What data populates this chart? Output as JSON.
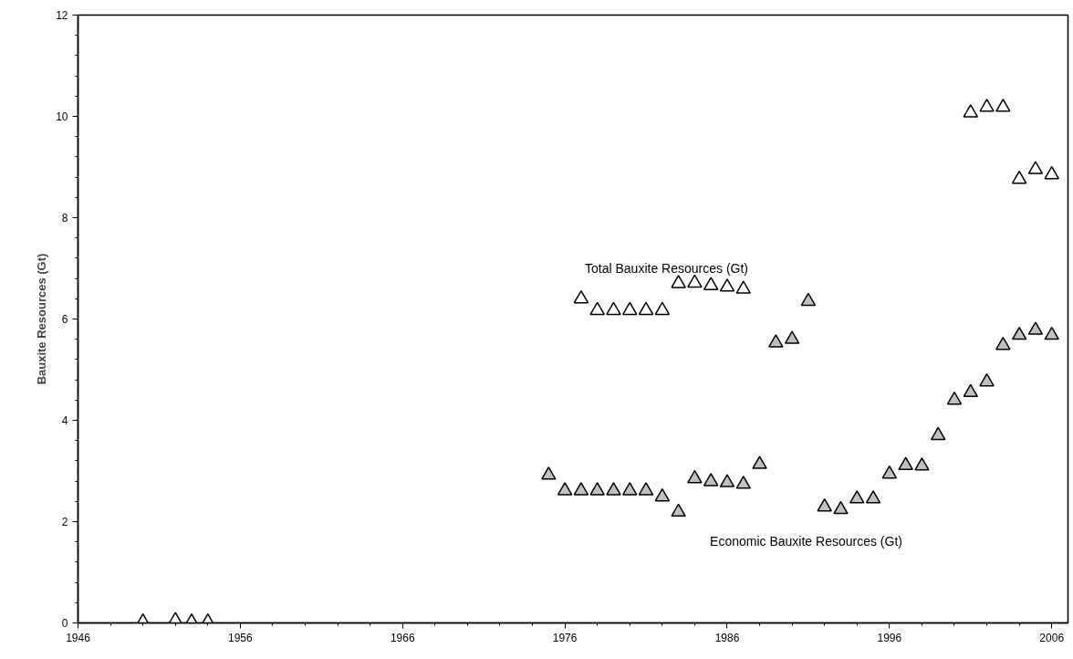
{
  "chart_data": {
    "type": "scatter",
    "ylabel": "Bauxite Resources (Gt)",
    "xlim": [
      1946,
      2007
    ],
    "xticks": [
      1946,
      1956,
      1966,
      1976,
      1986,
      1996,
      2006
    ],
    "ylim": [
      0,
      12
    ],
    "yticks": [
      0,
      2,
      4,
      6,
      8,
      10,
      12
    ],
    "grid": false,
    "marker": "triangle",
    "series": [
      {
        "name": "Total Bauxite Resources (Gt)",
        "color": "#ffffff",
        "x": [
          1950,
          1952,
          1953,
          1954,
          1977,
          1978,
          1979,
          1980,
          1981,
          1982,
          1983,
          1984,
          1985,
          1986,
          1987,
          2001,
          2002,
          2003,
          2004,
          2005,
          2006
        ],
        "values": [
          0.02,
          0.05,
          0.02,
          0.02,
          6.4,
          6.17,
          6.17,
          6.17,
          6.17,
          6.17,
          6.7,
          6.71,
          6.66,
          6.63,
          6.59,
          10.07,
          10.18,
          10.18,
          8.76,
          8.95,
          8.85
        ]
      },
      {
        "name": "Economic Bauxite Resources (Gt)",
        "color": "#c0c0c0",
        "x": [
          1975,
          1976,
          1977,
          1978,
          1979,
          1980,
          1981,
          1982,
          1983,
          1984,
          1985,
          1986,
          1987,
          1988,
          1989,
          1990,
          1991,
          1992,
          1993,
          1994,
          1995,
          1996,
          1997,
          1998,
          1999,
          2000,
          2001,
          2002,
          2003,
          2004,
          2005,
          2006
        ],
        "values": [
          2.92,
          2.61,
          2.61,
          2.61,
          2.61,
          2.61,
          2.61,
          2.49,
          2.19,
          2.85,
          2.79,
          2.77,
          2.74,
          3.13,
          5.53,
          5.6,
          6.35,
          2.29,
          2.24,
          2.45,
          2.45,
          2.94,
          3.11,
          3.1,
          3.7,
          4.4,
          4.55,
          4.76,
          5.48,
          5.68,
          5.78,
          5.68
        ]
      }
    ]
  }
}
